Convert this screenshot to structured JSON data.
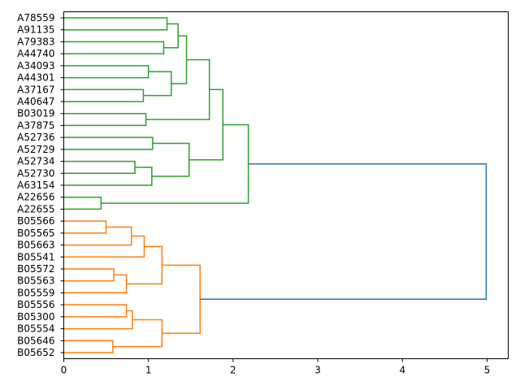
{
  "chart_data": {
    "type": "dendrogram",
    "orientation": "horizontal",
    "title": "",
    "xlabel": "",
    "ylabel": "",
    "xlim": [
      0,
      5.25
    ],
    "xticks": [
      0,
      1,
      2,
      3,
      4,
      5
    ],
    "xtick_labels": [
      "0",
      "1",
      "2",
      "3",
      "4",
      "5"
    ],
    "grid": false,
    "legend": "none",
    "colors": {
      "cluster_a": "#2ca02c",
      "cluster_b": "#ff7f0e",
      "root": "#1f77b4"
    },
    "leaves": [
      "A78559",
      "A91135",
      "A79383",
      "A44740",
      "A34093",
      "A44301",
      "A37167",
      "A40647",
      "B03019",
      "A37875",
      "A52736",
      "A52729",
      "A52734",
      "A52730",
      "A63154",
      "A22656",
      "A22655",
      "B05566",
      "B05565",
      "B05663",
      "B05541",
      "B05572",
      "B05563",
      "B05559",
      "B05556",
      "B05300",
      "B05554",
      "B05646",
      "B05652"
    ],
    "merges": [
      {
        "id": "n1",
        "left": "A78559",
        "right": "A91135",
        "height": 1.22,
        "color": "cluster_a"
      },
      {
        "id": "n2",
        "left": "A79383",
        "right": "A44740",
        "height": 1.18,
        "color": "cluster_a"
      },
      {
        "id": "n3",
        "left": "n1",
        "right": "n2",
        "height": 1.35,
        "color": "cluster_a"
      },
      {
        "id": "n4",
        "left": "A34093",
        "right": "A44301",
        "height": 1.0,
        "color": "cluster_a"
      },
      {
        "id": "n5",
        "left": "A37167",
        "right": "A40647",
        "height": 0.94,
        "color": "cluster_a"
      },
      {
        "id": "n6",
        "left": "n4",
        "right": "n5",
        "height": 1.27,
        "color": "cluster_a"
      },
      {
        "id": "n7",
        "left": "n3",
        "right": "n6",
        "height": 1.45,
        "color": "cluster_a"
      },
      {
        "id": "n8",
        "left": "B03019",
        "right": "A37875",
        "height": 0.97,
        "color": "cluster_a"
      },
      {
        "id": "n9",
        "left": "n7",
        "right": "n8",
        "height": 1.72,
        "color": "cluster_a"
      },
      {
        "id": "n10",
        "left": "A52736",
        "right": "A52729",
        "height": 1.05,
        "color": "cluster_a"
      },
      {
        "id": "n11",
        "left": "A52734",
        "right": "A52730",
        "height": 0.84,
        "color": "cluster_a"
      },
      {
        "id": "n12",
        "left": "n11",
        "right": "A63154",
        "height": 1.04,
        "color": "cluster_a"
      },
      {
        "id": "n13",
        "left": "n10",
        "right": "n12",
        "height": 1.48,
        "color": "cluster_a"
      },
      {
        "id": "n14",
        "left": "n9",
        "right": "n13",
        "height": 1.88,
        "color": "cluster_a"
      },
      {
        "id": "n15",
        "left": "A22656",
        "right": "A22655",
        "height": 0.44,
        "color": "cluster_a"
      },
      {
        "id": "n16",
        "left": "n14",
        "right": "n15",
        "height": 2.18,
        "color": "cluster_a"
      },
      {
        "id": "n17",
        "left": "B05566",
        "right": "B05565",
        "height": 0.5,
        "color": "cluster_b"
      },
      {
        "id": "n18",
        "left": "n17",
        "right": "B05663",
        "height": 0.8,
        "color": "cluster_b"
      },
      {
        "id": "n19",
        "left": "n18",
        "right": "B05541",
        "height": 0.95,
        "color": "cluster_b"
      },
      {
        "id": "n20",
        "left": "B05572",
        "right": "B05563",
        "height": 0.59,
        "color": "cluster_b"
      },
      {
        "id": "n21",
        "left": "n20",
        "right": "B05559",
        "height": 0.74,
        "color": "cluster_b"
      },
      {
        "id": "n22",
        "left": "n19",
        "right": "n21",
        "height": 1.16,
        "color": "cluster_b"
      },
      {
        "id": "n23",
        "left": "B05556",
        "right": "B05300",
        "height": 0.74,
        "color": "cluster_b"
      },
      {
        "id": "n24",
        "left": "n23",
        "right": "B05554",
        "height": 0.81,
        "color": "cluster_b"
      },
      {
        "id": "n25",
        "left": "B05646",
        "right": "B05652",
        "height": 0.58,
        "color": "cluster_b"
      },
      {
        "id": "n26",
        "left": "n24",
        "right": "n25",
        "height": 1.16,
        "color": "cluster_b"
      },
      {
        "id": "n27",
        "left": "n22",
        "right": "n26",
        "height": 1.61,
        "color": "cluster_b"
      },
      {
        "id": "n28",
        "left": "n16",
        "right": "n27",
        "height": 4.99,
        "color": "root"
      }
    ]
  }
}
